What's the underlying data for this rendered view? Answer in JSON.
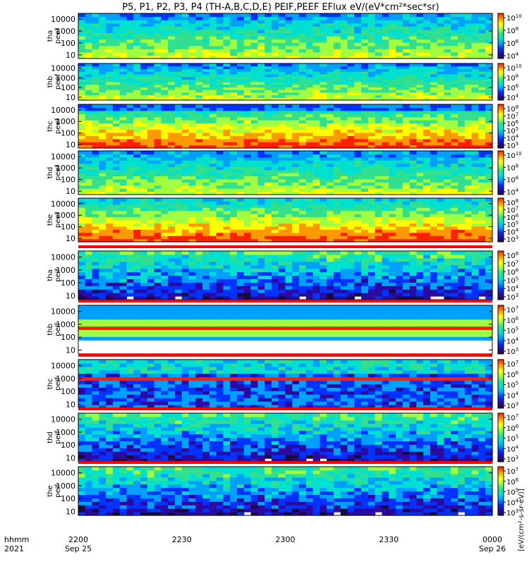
{
  "title": "P5, P1, P2, P3, P4 (TH-A,B,C,D,E) PEIF,PEEF EFlux eV/(eV*cm²*sec*sr)",
  "colorbar_unit_label": "[eV/(cm²-s-sr-eV)]",
  "x_axis": {
    "row_label_1": "hhmm",
    "row_label_2": "2021",
    "ticks": [
      {
        "t": 0,
        "label": "2200",
        "sub": "Sep 25"
      },
      {
        "t": 30,
        "label": "2230",
        "sub": ""
      },
      {
        "t": 60,
        "label": "2300",
        "sub": ""
      },
      {
        "t": 90,
        "label": "2330",
        "sub": ""
      },
      {
        "t": 120,
        "label": "0000",
        "sub": "Sep 26"
      }
    ],
    "range_minutes": [
      0,
      120
    ]
  },
  "colors": {
    "colormap": [
      "#1a0a3c",
      "#2a0aa0",
      "#0033ff",
      "#00a0ff",
      "#00e0d0",
      "#30e090",
      "#a0ff40",
      "#ffff00",
      "#ff9900",
      "#ff2000"
    ],
    "frame": "#000000",
    "flag_band": "#ff0000"
  },
  "chart_data": [
    {
      "type": "heatmap",
      "panel": "tha_peef",
      "ylabel": [
        "tha",
        "peef"
      ],
      "yscale": "log",
      "ylim": [
        5,
        30000
      ],
      "yticks": [
        "10",
        "100",
        "1000",
        "10000"
      ],
      "cbar_exponents": [
        "4",
        "6",
        "8",
        "10"
      ],
      "cbar_extra": "2"
    },
    {
      "type": "heatmap",
      "panel": "thb_peef",
      "ylabel": [
        "thb",
        "peef"
      ],
      "yscale": "log",
      "ylim": [
        5,
        30000
      ],
      "yticks": [
        "10",
        "100",
        "1000",
        "10000"
      ],
      "cbar_exponents": [
        "4",
        "6",
        "8",
        "10"
      ],
      "cbar_extra": "2"
    },
    {
      "type": "heatmap",
      "panel": "thc_peef",
      "ylabel": [
        "thc",
        "peef"
      ],
      "yscale": "log",
      "ylim": [
        5,
        30000
      ],
      "yticks": [
        "10",
        "100",
        "1000",
        "10000"
      ],
      "cbar_exponents": [
        "3",
        "4",
        "5",
        "6",
        "7",
        "8"
      ],
      "cbar_extra": ""
    },
    {
      "type": "heatmap",
      "panel": "thd_peef",
      "ylabel": [
        "thd",
        "peef"
      ],
      "yscale": "log",
      "ylim": [
        5,
        30000
      ],
      "yticks": [
        "10",
        "100",
        "1000",
        "10000"
      ],
      "cbar_exponents": [
        "4",
        "6",
        "8",
        "10"
      ],
      "cbar_extra": "2"
    },
    {
      "type": "heatmap",
      "panel": "the_peef",
      "ylabel": [
        "the",
        "peef"
      ],
      "yscale": "log",
      "ylim": [
        5,
        30000
      ],
      "yticks": [
        "10",
        "100",
        "1000",
        "10000"
      ],
      "cbar_exponents": [
        "3",
        "4",
        "5",
        "6",
        "7",
        "8"
      ],
      "cbar_extra": ""
    },
    {
      "type": "heatmap",
      "panel": "tha_peif",
      "ylabel": [
        "tha",
        "peif"
      ],
      "yscale": "log",
      "ylim": [
        5,
        30000
      ],
      "yticks": [
        "10",
        "100",
        "1000",
        "10000"
      ],
      "cbar_exponents": [
        "3",
        "4",
        "5",
        "6",
        "7",
        "8"
      ],
      "cbar_extra": ""
    },
    {
      "type": "heatmap",
      "panel": "thb_peif",
      "ylabel": [
        "thb",
        "peif"
      ],
      "yscale": "log",
      "ylim": [
        5,
        30000
      ],
      "yticks": [
        "10",
        "100",
        "1000",
        "10000"
      ],
      "cbar_exponents": [
        "3",
        "4",
        "5",
        "6",
        "7"
      ],
      "cbar_extra": ""
    },
    {
      "type": "heatmap",
      "panel": "thc_peif",
      "ylabel": [
        "thc",
        "peif"
      ],
      "yscale": "log",
      "ylim": [
        5,
        30000
      ],
      "yticks": [
        "10",
        "100",
        "1000",
        "10000"
      ],
      "cbar_exponents": [
        "3",
        "4",
        "5",
        "6",
        "7"
      ],
      "cbar_extra": ""
    },
    {
      "type": "heatmap",
      "panel": "thd_peif",
      "ylabel": [
        "thd",
        "peif"
      ],
      "yscale": "log",
      "ylim": [
        5,
        30000
      ],
      "yticks": [
        "10",
        "100",
        "1000",
        "10000"
      ],
      "cbar_exponents": [
        "3",
        "4",
        "5",
        "6",
        "7"
      ],
      "cbar_extra": ""
    },
    {
      "type": "heatmap",
      "panel": "the_peif",
      "ylabel": [
        "the",
        "peif"
      ],
      "yscale": "log",
      "ylim": [
        5,
        30000
      ],
      "yticks": [
        "10",
        "100",
        "1000",
        "10000"
      ],
      "cbar_exponents": [
        "3",
        "4",
        "5",
        "6",
        "7"
      ],
      "cbar_extra": ""
    }
  ]
}
